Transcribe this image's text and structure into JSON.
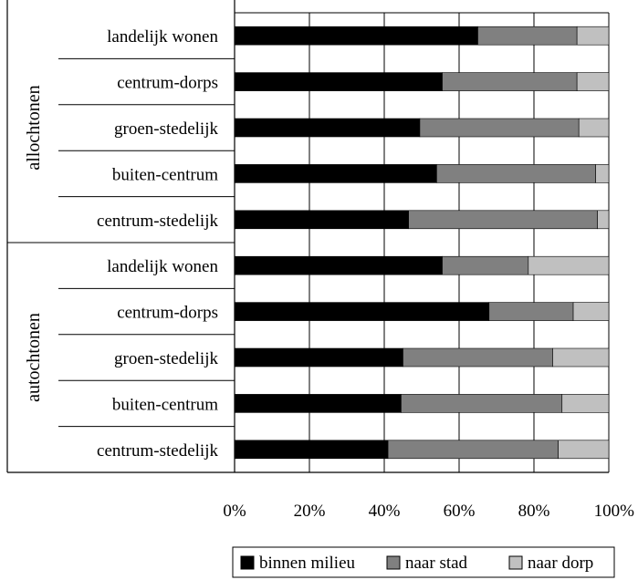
{
  "chart_data": {
    "type": "bar",
    "orientation": "horizontal",
    "stacked": true,
    "percent": true,
    "groups": [
      {
        "label": "allochtonen",
        "categories": [
          "landelijk wonen",
          "centrum-dorps",
          "groen-stedelijk",
          "buiten-centrum",
          "centrum-stedelijk"
        ]
      },
      {
        "label": "autochtonen",
        "categories": [
          "landelijk wonen",
          "centrum-dorps",
          "groen-stedelijk",
          "buiten-centrum",
          "centrum-stedelijk"
        ]
      }
    ],
    "series": [
      {
        "name": "binnen milieu",
        "color": "#000000",
        "values": [
          65,
          55.5,
          49.5,
          54,
          46.5,
          55.5,
          68,
          45,
          44.5,
          41
        ]
      },
      {
        "name": "naar stad",
        "color": "#808080",
        "values": [
          26.5,
          36,
          42.5,
          42.5,
          50.5,
          23,
          22.5,
          40,
          43,
          45.5
        ]
      },
      {
        "name": "naar dorp",
        "color": "#c0c0c0",
        "values": [
          8.5,
          8.5,
          8,
          3.5,
          3,
          21.5,
          9.5,
          15,
          12.5,
          13.5
        ]
      }
    ],
    "xlim": [
      0,
      100
    ],
    "xticks": [
      "0%",
      "20%",
      "40%",
      "60%",
      "80%",
      "100%"
    ],
    "grid": true,
    "legend_position": "bottom-right"
  }
}
